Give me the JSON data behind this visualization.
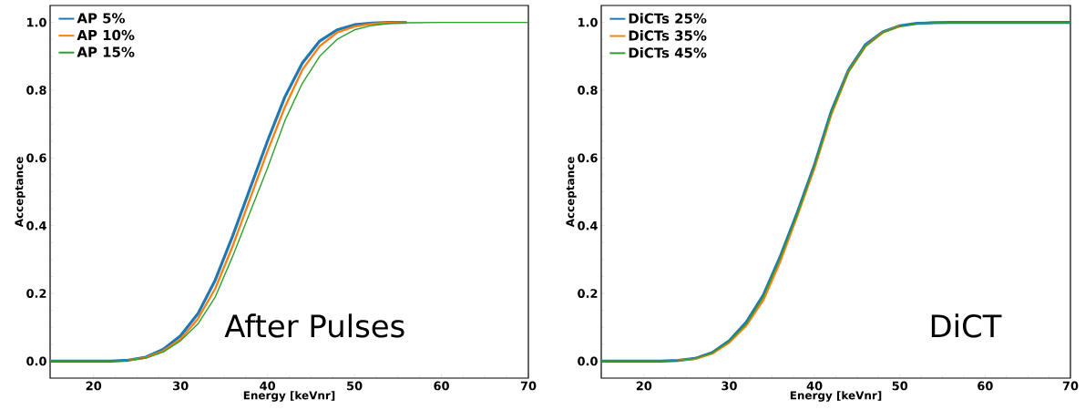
{
  "chart_data": [
    {
      "type": "line",
      "xlabel": "Energy [keVnr]",
      "ylabel": "Acceptance",
      "annotations": [
        "After Pulses"
      ],
      "legend": "top left",
      "xlim": [
        15,
        70
      ],
      "ylim": [
        -0.05,
        1.05
      ],
      "xticks": [
        20,
        30,
        40,
        50,
        60,
        70
      ],
      "yticks": [
        {
          "value": 0,
          "label": "0.0"
        },
        {
          "value": 0.2,
          "label": "0.2"
        },
        {
          "value": 0.4,
          "label": "0.4"
        },
        {
          "value": 0.6,
          "label": "0.6"
        },
        {
          "value": 0.8,
          "label": "0.8"
        },
        {
          "value": 1,
          "label": "1.0"
        }
      ],
      "x": [
        15,
        20,
        22,
        24,
        26,
        28,
        30,
        32,
        34,
        36,
        38,
        40,
        42,
        44,
        46,
        48,
        50,
        52,
        54,
        56,
        60,
        70
      ],
      "series": [
        {
          "name": "AP 5%",
          "color": "#1f77b4",
          "values": [
            0,
            0,
            0,
            0.003,
            0.012,
            0.035,
            0.075,
            0.14,
            0.24,
            0.37,
            0.51,
            0.65,
            0.78,
            0.88,
            0.945,
            0.978,
            0.993,
            0.998,
            1,
            1,
            null,
            null
          ]
        },
        {
          "name": "AP 10%",
          "color": "#ff7f0e",
          "values": [
            null,
            null,
            null,
            0.002,
            0.01,
            0.03,
            0.065,
            0.125,
            0.215,
            0.34,
            0.48,
            0.62,
            0.75,
            0.86,
            0.93,
            0.97,
            0.988,
            0.996,
            0.999,
            1,
            null,
            null
          ]
        },
        {
          "name": "AP 15%",
          "color": "#2ca02c",
          "values": [
            0,
            0,
            0,
            0.002,
            0.009,
            0.027,
            0.06,
            0.11,
            0.19,
            0.31,
            0.44,
            0.57,
            0.71,
            0.82,
            0.9,
            0.95,
            0.978,
            0.991,
            0.997,
            0.999,
            1,
            1
          ]
        }
      ]
    },
    {
      "type": "line",
      "xlabel": "Energy [keVnr]",
      "ylabel": "Acceptance",
      "annotations": [
        "DiCT"
      ],
      "legend": "top left",
      "xlim": [
        15,
        70
      ],
      "ylim": [
        -0.05,
        1.05
      ],
      "xticks": [
        20,
        30,
        40,
        50,
        60,
        70
      ],
      "yticks": [
        {
          "value": 0,
          "label": "0.0"
        },
        {
          "value": 0.2,
          "label": "0.2"
        },
        {
          "value": 0.4,
          "label": "0.4"
        },
        {
          "value": 0.6,
          "label": "0.6"
        },
        {
          "value": 0.8,
          "label": "0.8"
        },
        {
          "value": 1,
          "label": "1.0"
        }
      ],
      "x": [
        15,
        20,
        22,
        24,
        26,
        28,
        30,
        32,
        34,
        36,
        38,
        40,
        42,
        44,
        46,
        48,
        50,
        52,
        54,
        56,
        60,
        70
      ],
      "series": [
        {
          "name": "DiCTs 25%",
          "color": "#1f77b4",
          "values": [
            0,
            0,
            0,
            0.002,
            0.008,
            0.025,
            0.06,
            0.115,
            0.195,
            0.31,
            0.44,
            0.58,
            0.74,
            0.86,
            0.935,
            0.972,
            0.99,
            0.997,
            0.999,
            1,
            1,
            1
          ]
        },
        {
          "name": "DiCTs 35%",
          "color": "#ff7f0e",
          "values": [
            null,
            null,
            null,
            0.002,
            0.007,
            0.022,
            0.055,
            0.105,
            0.18,
            0.295,
            0.43,
            0.57,
            0.73,
            0.855,
            0.93,
            0.97,
            0.989,
            null,
            null,
            null,
            null,
            null
          ]
        },
        {
          "name": "DiCTs 45%",
          "color": "#2ca02c",
          "values": [
            0,
            0,
            0,
            0.002,
            0.008,
            0.024,
            0.058,
            0.11,
            0.19,
            0.305,
            0.435,
            0.575,
            0.735,
            0.855,
            0.93,
            0.97,
            0.989,
            0.997,
            0.999,
            1,
            1,
            1
          ]
        }
      ]
    }
  ]
}
